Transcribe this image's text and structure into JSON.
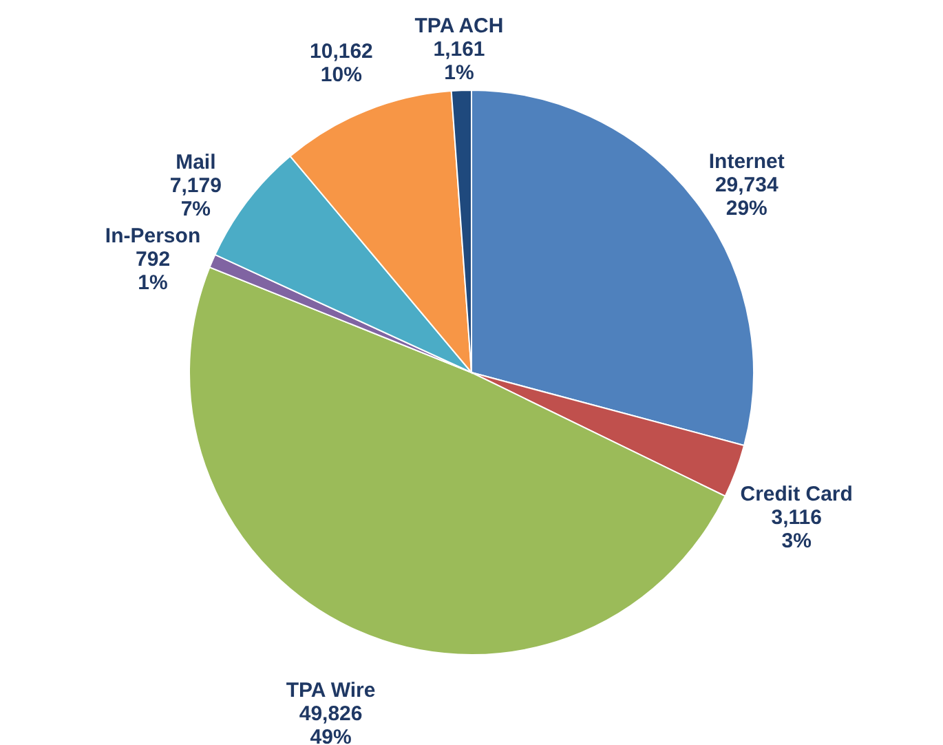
{
  "chart_data": {
    "type": "pie",
    "categories": [
      "Internet",
      "Credit Card",
      "TPA Wire",
      "In-Person",
      "Mail",
      null,
      "TPA ACH"
    ],
    "values": [
      29734,
      3116,
      49826,
      792,
      7179,
      10162,
      1161
    ],
    "colors": [
      "#4f81bd",
      "#c0504d",
      "#9bbb59",
      "#8064a2",
      "#4bacc6",
      "#f79646",
      "#1f497d"
    ],
    "value_labels": [
      "29,734\n29%",
      "3,116\n3%",
      "49,826\n49%",
      "792\n1%",
      "7,179\n7%",
      "10,162\n10%",
      "1,161\n1%"
    ],
    "legend": false
  }
}
